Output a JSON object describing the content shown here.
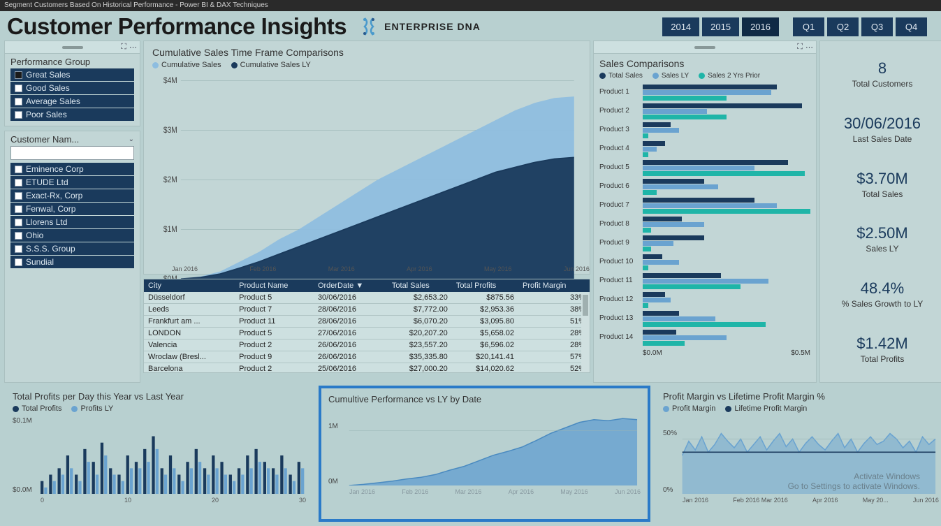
{
  "window_title": "Segment Customers Based On Historical Performance - Power BI & DAX Techniques",
  "header": {
    "title": "Customer Performance Insights",
    "brand": "ENTERPRISE DNA"
  },
  "colors": {
    "dark_blue": "#1a3a5c",
    "mid_blue": "#6aa3d0",
    "light_blue": "#8dbde0",
    "teal": "#1fb5a8",
    "panel": "#c2d6d6",
    "bg": "#b8d0d0",
    "text": "#333333",
    "highlight_border": "#2a7ac8"
  },
  "years": {
    "options": [
      "2014",
      "2015",
      "2016"
    ],
    "selected": "2016"
  },
  "quarters": {
    "options": [
      "Q1",
      "Q2",
      "Q3",
      "Q4"
    ]
  },
  "perf_group": {
    "title": "Performance Group",
    "items": [
      "Great Sales",
      "Good Sales",
      "Average Sales",
      "Poor Sales"
    ],
    "selected": "Great Sales"
  },
  "customer_slicer": {
    "title": "Customer Nam...",
    "search_placeholder": "",
    "items": [
      "Eminence Corp",
      "ETUDE Ltd",
      "Exact-Rx, Corp",
      "Fenwal, Corp",
      "Llorens Ltd",
      "Ohio",
      "S.S.S. Group",
      "Sundial"
    ]
  },
  "cum_chart": {
    "title": "Cumulative Sales Time Frame Comparisons",
    "legend": [
      {
        "label": "Cumulative Sales",
        "color": "#8dbde0"
      },
      {
        "label": "Cumulative Sales LY",
        "color": "#1a3a5c"
      }
    ],
    "y_ticks": [
      "$4M",
      "$3M",
      "$2M",
      "$1M",
      "$0M"
    ],
    "x_ticks": [
      "Jan 2016",
      "Feb 2016",
      "Mar 2016",
      "Apr 2016",
      "May 2016",
      "Jun 2016"
    ],
    "series_current": [
      0,
      0.05,
      0.15,
      0.35,
      0.55,
      0.8,
      1.0,
      1.25,
      1.5,
      1.75,
      2.0,
      2.2,
      2.4,
      2.6,
      2.8,
      3.0,
      3.2,
      3.4,
      3.55,
      3.65,
      3.68
    ],
    "series_ly": [
      0,
      0.03,
      0.1,
      0.22,
      0.35,
      0.5,
      0.65,
      0.8,
      0.95,
      1.1,
      1.25,
      1.4,
      1.55,
      1.7,
      1.85,
      2.0,
      2.15,
      2.25,
      2.35,
      2.42,
      2.45
    ],
    "ylim": [
      0,
      4
    ]
  },
  "table": {
    "columns": [
      "City",
      "Product Name",
      "OrderDate",
      "Total Sales",
      "Total Profits",
      "Profit Margin"
    ],
    "sort_col": 2,
    "rows": [
      [
        "Düsseldorf",
        "Product 5",
        "30/06/2016",
        "$2,653.20",
        "$875.56",
        "33%"
      ],
      [
        "Leeds",
        "Product 7",
        "28/06/2016",
        "$7,772.00",
        "$2,953.36",
        "38%"
      ],
      [
        "Frankfurt am ...",
        "Product 11",
        "28/06/2016",
        "$6,070.20",
        "$3,095.80",
        "51%"
      ],
      [
        "LONDON",
        "Product 5",
        "27/06/2016",
        "$20,207.20",
        "$5,658.02",
        "28%"
      ],
      [
        "Valencia",
        "Product 2",
        "26/06/2016",
        "$23,557.20",
        "$6,596.02",
        "28%"
      ],
      [
        "Wroclaw (Bresl...",
        "Product 9",
        "26/06/2016",
        "$35,335.80",
        "$20,141.41",
        "57%"
      ],
      [
        "Barcelona",
        "Product 2",
        "25/06/2016",
        "$27,000.20",
        "$14,020.62",
        "52%"
      ]
    ]
  },
  "sales_comp": {
    "title": "Sales Comparisons",
    "legend": [
      {
        "label": "Total Sales",
        "color": "#1a3a5c"
      },
      {
        "label": "Sales LY",
        "color": "#6aa3d0"
      },
      {
        "label": "Sales 2 Yrs Prior",
        "color": "#1fb5a8"
      }
    ],
    "products": [
      {
        "name": "Product 1",
        "vals": [
          0.48,
          0.46,
          0.3
        ]
      },
      {
        "name": "Product 2",
        "vals": [
          0.57,
          0.23,
          0.3
        ]
      },
      {
        "name": "Product 3",
        "vals": [
          0.1,
          0.13,
          0.02
        ]
      },
      {
        "name": "Product 4",
        "vals": [
          0.08,
          0.05,
          0.02
        ]
      },
      {
        "name": "Product 5",
        "vals": [
          0.52,
          0.4,
          0.58
        ]
      },
      {
        "name": "Product 6",
        "vals": [
          0.22,
          0.27,
          0.05
        ]
      },
      {
        "name": "Product 7",
        "vals": [
          0.4,
          0.48,
          0.6
        ]
      },
      {
        "name": "Product 8",
        "vals": [
          0.14,
          0.22,
          0.03
        ]
      },
      {
        "name": "Product 9",
        "vals": [
          0.22,
          0.11,
          0.03
        ]
      },
      {
        "name": "Product 10",
        "vals": [
          0.07,
          0.13,
          0.02
        ]
      },
      {
        "name": "Product 11",
        "vals": [
          0.28,
          0.45,
          0.35
        ]
      },
      {
        "name": "Product 12",
        "vals": [
          0.08,
          0.1,
          0.02
        ]
      },
      {
        "name": "Product 13",
        "vals": [
          0.13,
          0.26,
          0.44
        ]
      },
      {
        "name": "Product 14",
        "vals": [
          0.12,
          0.3,
          0.15
        ]
      }
    ],
    "xlim": 0.6,
    "x_ticks": [
      "$0.0M",
      "$0.5M"
    ]
  },
  "kpis": [
    {
      "val": "8",
      "lbl": "Total Customers"
    },
    {
      "val": "30/06/2016",
      "lbl": "Last Sales Date"
    },
    {
      "val": "$3.70M",
      "lbl": "Total Sales"
    },
    {
      "val": "$2.50M",
      "lbl": "Sales LY"
    },
    {
      "val": "48.4%",
      "lbl": "% Sales Growth to LY"
    },
    {
      "val": "$1.42M",
      "lbl": "Total Profits"
    }
  ],
  "bottom1": {
    "title": "Total Profits per Day this Year vs Last Year",
    "legend": [
      {
        "label": "Total Profits",
        "color": "#1a3a5c"
      },
      {
        "label": "Profits LY",
        "color": "#6aa3d0"
      }
    ],
    "y_ticks": [
      "$0.1M",
      "$0.0M"
    ],
    "x_ticks": [
      "0",
      "10",
      "20",
      "30"
    ],
    "bars_current": [
      0.02,
      0.03,
      0.04,
      0.06,
      0.03,
      0.07,
      0.05,
      0.08,
      0.04,
      0.03,
      0.06,
      0.05,
      0.07,
      0.09,
      0.04,
      0.06,
      0.03,
      0.05,
      0.07,
      0.04,
      0.06,
      0.05,
      0.03,
      0.04,
      0.06,
      0.07,
      0.05,
      0.04,
      0.06,
      0.03,
      0.05
    ],
    "bars_ly": [
      0.01,
      0.02,
      0.03,
      0.04,
      0.02,
      0.05,
      0.03,
      0.06,
      0.03,
      0.02,
      0.04,
      0.04,
      0.05,
      0.07,
      0.03,
      0.04,
      0.02,
      0.04,
      0.05,
      0.03,
      0.04,
      0.03,
      0.02,
      0.03,
      0.04,
      0.05,
      0.04,
      0.03,
      0.04,
      0.02,
      0.04
    ],
    "ylim": 0.12
  },
  "bottom2": {
    "title": "Cumultive Performance vs LY by Date",
    "y_ticks": [
      "1M",
      "0M"
    ],
    "x_ticks": [
      "Jan 2016",
      "Feb 2016",
      "Mar 2016",
      "Apr 2016",
      "May 2016",
      "Jun 2016"
    ],
    "series": [
      0,
      0.02,
      0.05,
      0.08,
      0.12,
      0.15,
      0.2,
      0.28,
      0.35,
      0.45,
      0.55,
      0.62,
      0.7,
      0.82,
      0.95,
      1.05,
      1.15,
      1.2,
      1.18,
      1.22,
      1.2
    ],
    "ylim": 1.4,
    "color": "#6aa3d0"
  },
  "bottom3": {
    "title": "Profit Margin vs Lifetime Profit Margin %",
    "legend": [
      {
        "label": "Profit Margin",
        "color": "#6aa3d0"
      },
      {
        "label": "Lifetime Profit Margin",
        "color": "#1a3a5c"
      }
    ],
    "y_ticks": [
      "50%",
      "0%"
    ],
    "x_ticks": [
      "Jan 2016",
      "Feb 2016 Mar 2016",
      "Apr 2016",
      "May 20...",
      "Jun 2016"
    ],
    "series_a": [
      35,
      48,
      40,
      52,
      38,
      45,
      55,
      48,
      42,
      50,
      38,
      45,
      52,
      40,
      48,
      55,
      43,
      50,
      38,
      46,
      52,
      45,
      40,
      48,
      55,
      42,
      50,
      38,
      46,
      52,
      45,
      48,
      55,
      50,
      42,
      48,
      38,
      52,
      45,
      50
    ],
    "series_b": [
      38,
      38,
      38,
      38,
      38,
      38,
      38,
      38,
      38,
      38,
      38,
      38,
      38,
      38,
      38,
      38,
      38,
      38,
      38,
      38,
      38,
      38,
      38,
      38,
      38,
      38,
      38,
      38,
      38,
      38,
      38,
      38,
      38,
      38,
      38,
      38,
      38,
      38,
      38,
      38
    ],
    "ylim": 70
  },
  "watermark": {
    "line1": "Activate Windows",
    "line2": "Go to Settings to activate Windows."
  }
}
